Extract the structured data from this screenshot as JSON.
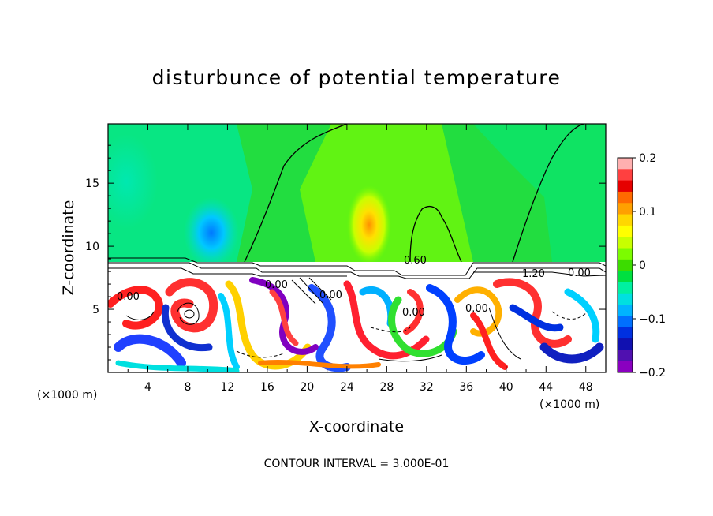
{
  "chart_data": {
    "type": "heatmap",
    "title": "disturbunce of potential temperature",
    "xlabel": "X-coordinate",
    "ylabel": "Z-coordinate",
    "x_unit_label": "(×1000 m)",
    "x_ticks": [
      4,
      8,
      12,
      16,
      20,
      24,
      28,
      32,
      36,
      40,
      44,
      48
    ],
    "y_ticks": [
      5,
      10,
      15
    ],
    "xlim": [
      0,
      50
    ],
    "ylim": [
      0,
      19.7
    ],
    "colorbar": {
      "ticks": [
        "0.2",
        "0.1",
        "0",
        "−0.1",
        "−0.2"
      ],
      "range": [
        -0.2,
        0.2
      ],
      "colors": [
        "#ffb0b0",
        "#ff4040",
        "#e60000",
        "#ff6a00",
        "#ffa000",
        "#ffd700",
        "#ffff00",
        "#c8ff00",
        "#7cfc00",
        "#3cdc00",
        "#00e040",
        "#00f0a0",
        "#00e0e0",
        "#00b4ff",
        "#0070ff",
        "#0030e0",
        "#1010b0",
        "#5010b0",
        "#8a00c0"
      ]
    },
    "contour_labels": [
      "0.00",
      "0.60",
      "1.20",
      "0.00",
      "0.00",
      "0.00",
      "0.00",
      "0.00"
    ],
    "footer": "CONTOUR INTERVAL = 3.000E-01"
  },
  "colors": {
    "upper_field": "#22dd40",
    "lower_background": "#ffffff",
    "frame": "#000000"
  }
}
